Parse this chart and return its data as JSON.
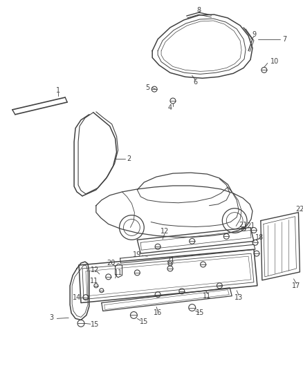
{
  "bg_color": "#ffffff",
  "line_color": "#404040",
  "figsize": [
    4.39,
    5.33
  ],
  "dpi": 100
}
